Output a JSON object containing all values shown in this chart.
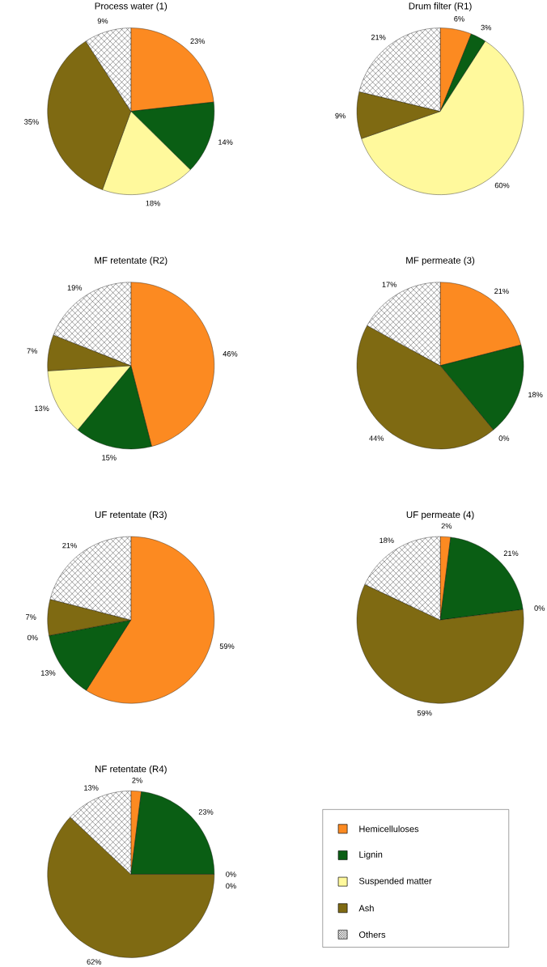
{
  "chart_data": [
    {
      "type": "pie",
      "title": "Process water (1)",
      "values": [
        23,
        14,
        18,
        35,
        9
      ],
      "value_labels": [
        "23%",
        "14%",
        "18%",
        "35%",
        "9%"
      ],
      "colors": [
        "#fc8a21",
        "#0a5e14",
        "#fff99c",
        "#7f6a12",
        "#ffffff"
      ]
    },
    {
      "type": "pie",
      "title": "Drum filter (R1)",
      "values": [
        6,
        3,
        60,
        9,
        21
      ],
      "value_labels": [
        "6%",
        "3%",
        "60%",
        "9%",
        "21%"
      ],
      "colors": [
        "#fc8a21",
        "#0a5e14",
        "#fff99c",
        "#7f6a12",
        "#ffffff"
      ]
    },
    {
      "type": "pie",
      "title": "MF retentate (R2)",
      "values": [
        46,
        15,
        13,
        7,
        19
      ],
      "value_labels": [
        "46%",
        "15%",
        "13%",
        "7%",
        "19%"
      ],
      "colors": [
        "#fc8a21",
        "#0a5e14",
        "#fff99c",
        "#7f6a12",
        "#ffffff"
      ]
    },
    {
      "type": "pie",
      "title": "MF permeate (3)",
      "values": [
        21,
        18,
        0,
        44,
        17
      ],
      "value_labels": [
        "21%",
        "18%",
        "0%",
        "44%",
        "17%"
      ],
      "colors": [
        "#fc8a21",
        "#0a5e14",
        "#fff99c",
        "#7f6a12",
        "#ffffff"
      ]
    },
    {
      "type": "pie",
      "title": "UF retentate (R3)",
      "values": [
        59,
        13,
        0,
        7,
        21
      ],
      "value_labels": [
        "59%",
        "13%",
        "0%",
        "7%",
        "21%"
      ],
      "colors": [
        "#fc8a21",
        "#0a5e14",
        "#fff99c",
        "#7f6a12",
        "#ffffff"
      ]
    },
    {
      "type": "pie",
      "title": "UF permeate (4)",
      "values": [
        2,
        21,
        0,
        59,
        18
      ],
      "value_labels": [
        "2%",
        "21%",
        "0%",
        "59%",
        "18%"
      ],
      "colors": [
        "#fc8a21",
        "#0a5e14",
        "#fff99c",
        "#7f6a12",
        "#ffffff"
      ]
    },
    {
      "type": "pie",
      "title": "NF retentate (R4)",
      "categories": [
        "Hemicelluloses",
        "Lignin",
        "Suspended matter",
        "Ash",
        "Others"
      ],
      "values": [
        2,
        23,
        0,
        62,
        13
      ],
      "value_labels": [
        "2%",
        "23%",
        "0%",
        "62%",
        "13%"
      ],
      "colors": [
        "#fc8a21",
        "#0a5e14",
        "#fff99c",
        "#7f6a12",
        "#ffffff"
      ],
      "annotations": [
        "0%"
      ],
      "legend": "right"
    }
  ]
}
